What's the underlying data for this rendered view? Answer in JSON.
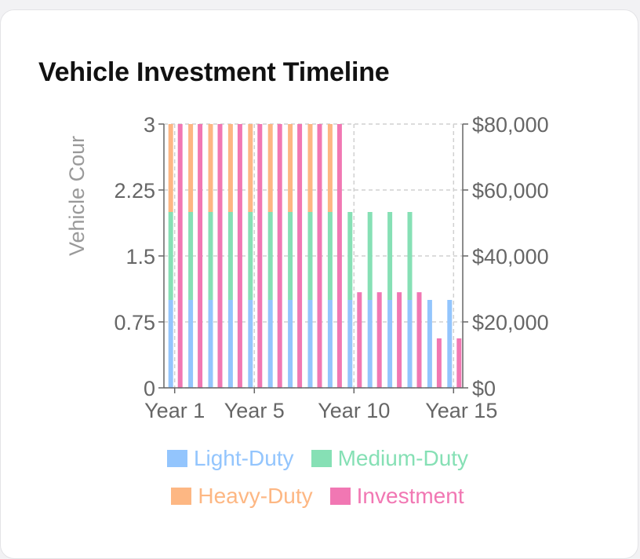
{
  "card": {
    "title": "Vehicle Investment Timeline"
  },
  "colors": {
    "light": "#93c5fd",
    "medium": "#86e0b5",
    "heavy": "#fdb783",
    "investment": "#f177b3",
    "grid": "#d0d0d0",
    "axis": "#666666"
  },
  "chart_data": {
    "type": "bar",
    "x_ticks_shown": [
      "Year 1",
      "Year 5",
      "Year 10",
      "Year 15"
    ],
    "categories": [
      "Year 1",
      "Year 2",
      "Year 3",
      "Year 4",
      "Year 5",
      "Year 6",
      "Year 7",
      "Year 8",
      "Year 9",
      "Year 10",
      "Year 11",
      "Year 12",
      "Year 13",
      "Year 14",
      "Year 15"
    ],
    "stacked_series": [
      {
        "name": "Light-Duty",
        "axis": "left",
        "values": [
          1,
          1,
          1,
          1,
          1,
          1,
          1,
          1,
          1,
          1,
          1,
          1,
          1,
          1,
          1
        ]
      },
      {
        "name": "Medium-Duty",
        "axis": "left",
        "values": [
          1,
          1,
          1,
          1,
          1,
          1,
          1,
          1,
          1,
          1,
          1,
          1,
          1,
          0,
          0
        ]
      },
      {
        "name": "Heavy-Duty",
        "axis": "left",
        "values": [
          1,
          1,
          1,
          1,
          1,
          1,
          1,
          1,
          1,
          0,
          0,
          0,
          0,
          0,
          0
        ]
      }
    ],
    "investment_series": {
      "name": "Investment",
      "axis": "right",
      "values": [
        80000,
        80000,
        80000,
        80000,
        80000,
        80000,
        80000,
        80000,
        80000,
        29000,
        29000,
        29000,
        29000,
        15000,
        15000
      ]
    },
    "left_axis": {
      "label": "Vehicle Cour",
      "ticks": [
        "0",
        "0.75",
        "1.5",
        "2.25",
        "3"
      ],
      "range": [
        0,
        3
      ]
    },
    "right_axis": {
      "ticks": [
        "$0",
        "$20,000",
        "$40,000",
        "$60,000",
        "$80,000"
      ],
      "range": [
        0,
        80000
      ]
    },
    "grid": true,
    "legend_position": "bottom"
  },
  "legend": [
    {
      "label": "Light-Duty",
      "key": "light"
    },
    {
      "label": "Medium-Duty",
      "key": "medium"
    },
    {
      "label": "Heavy-Duty",
      "key": "heavy"
    },
    {
      "label": "Investment",
      "key": "investment"
    }
  ]
}
